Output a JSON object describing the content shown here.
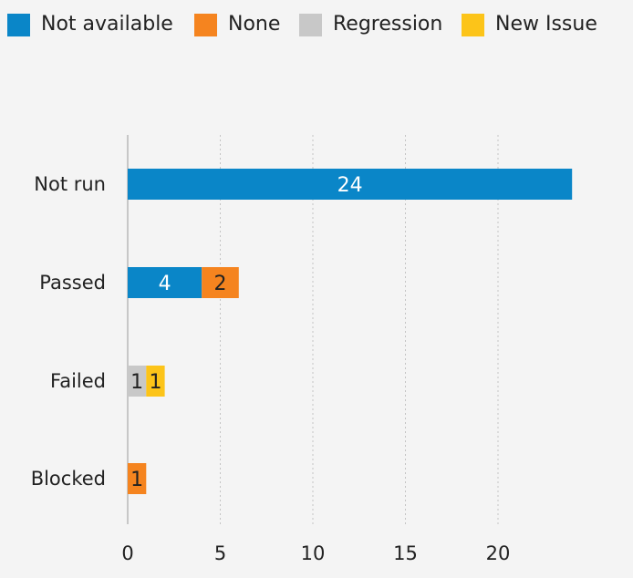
{
  "chart_data": {
    "type": "bar",
    "orientation": "horizontal",
    "stacked": true,
    "categories": [
      "Not run",
      "Passed",
      "Failed",
      "Blocked"
    ],
    "series": [
      {
        "name": "Not available",
        "color": "#0a86c8",
        "values": [
          24,
          4,
          0,
          0
        ]
      },
      {
        "name": "None",
        "color": "#f5841f",
        "values": [
          0,
          2,
          0,
          1
        ]
      },
      {
        "name": "Regression",
        "color": "#c8c8c8",
        "values": [
          0,
          0,
          1,
          0
        ]
      },
      {
        "name": "New Issue",
        "color": "#fcc419",
        "values": [
          0,
          0,
          1,
          0
        ]
      }
    ],
    "xticks": [
      0,
      5,
      10,
      15,
      20
    ],
    "xlim": [
      0,
      24
    ],
    "grid": "vertical dotted",
    "legend_position": "top",
    "data_labels": true
  }
}
